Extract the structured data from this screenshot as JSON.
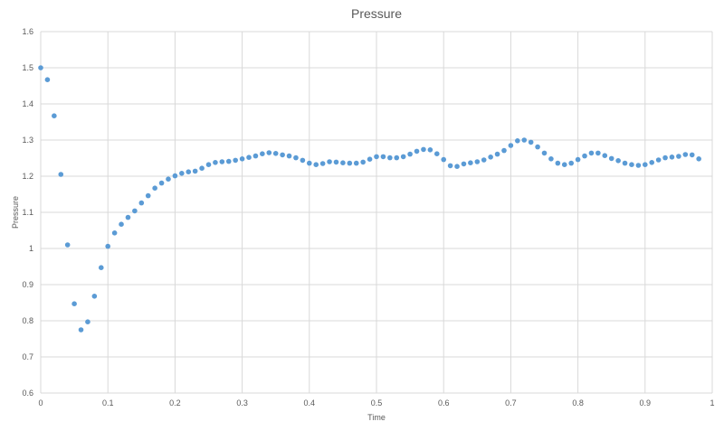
{
  "chart_data": {
    "type": "scatter",
    "title": "Pressure",
    "xlabel": "Time",
    "ylabel": "Pressure",
    "xlim": [
      0,
      1
    ],
    "ylim": [
      0.6,
      1.6
    ],
    "x_ticks": [
      "0",
      "0.1",
      "0.2",
      "0.3",
      "0.4",
      "0.5",
      "0.6",
      "0.7",
      "0.8",
      "0.9",
      "1"
    ],
    "y_ticks": [
      "0.6",
      "0.7",
      "0.8",
      "0.9",
      "1",
      "1.1",
      "1.2",
      "1.3",
      "1.4",
      "1.5",
      "1.6"
    ],
    "grid": true,
    "legend": "none",
    "marker_color": "#5b9bd5",
    "grid_color": "#d9d9d9",
    "series": [
      {
        "x": [
          0.0,
          0.01,
          0.02,
          0.03,
          0.04,
          0.05,
          0.06,
          0.07,
          0.08,
          0.09,
          0.1,
          0.11,
          0.12,
          0.13,
          0.14,
          0.15,
          0.16,
          0.17,
          0.18,
          0.19,
          0.2,
          0.21,
          0.22,
          0.23,
          0.24,
          0.25,
          0.26,
          0.27,
          0.28,
          0.29,
          0.3,
          0.31,
          0.32,
          0.33,
          0.34,
          0.35,
          0.36,
          0.37,
          0.38,
          0.39,
          0.4,
          0.41,
          0.42,
          0.43,
          0.44,
          0.45,
          0.46,
          0.47,
          0.48,
          0.49,
          0.5,
          0.51,
          0.52,
          0.53,
          0.54,
          0.55,
          0.56,
          0.57,
          0.58,
          0.59,
          0.6,
          0.61,
          0.62,
          0.63,
          0.64,
          0.65,
          0.66,
          0.67,
          0.68,
          0.69,
          0.7,
          0.71,
          0.72,
          0.73,
          0.74,
          0.75,
          0.76,
          0.77,
          0.78,
          0.79,
          0.8,
          0.81,
          0.82,
          0.83,
          0.84,
          0.85,
          0.86,
          0.87,
          0.88,
          0.89,
          0.9,
          0.91,
          0.92,
          0.93,
          0.94,
          0.95,
          0.96,
          0.97,
          0.98
        ],
        "y": [
          1.5,
          1.467,
          1.367,
          1.205,
          1.01,
          0.847,
          0.775,
          0.797,
          0.868,
          0.947,
          1.006,
          1.043,
          1.067,
          1.086,
          1.104,
          1.126,
          1.146,
          1.167,
          1.181,
          1.192,
          1.201,
          1.208,
          1.212,
          1.214,
          1.222,
          1.232,
          1.238,
          1.24,
          1.241,
          1.244,
          1.248,
          1.252,
          1.256,
          1.262,
          1.265,
          1.263,
          1.259,
          1.256,
          1.251,
          1.244,
          1.236,
          1.232,
          1.235,
          1.24,
          1.239,
          1.237,
          1.236,
          1.236,
          1.239,
          1.247,
          1.254,
          1.254,
          1.251,
          1.251,
          1.254,
          1.261,
          1.269,
          1.274,
          1.273,
          1.262,
          1.246,
          1.229,
          1.227,
          1.234,
          1.237,
          1.24,
          1.245,
          1.253,
          1.261,
          1.271,
          1.285,
          1.298,
          1.3,
          1.294,
          1.281,
          1.264,
          1.248,
          1.236,
          1.232,
          1.236,
          1.246,
          1.256,
          1.264,
          1.264,
          1.257,
          1.249,
          1.243,
          1.236,
          1.232,
          1.23,
          1.232,
          1.238,
          1.245,
          1.251,
          1.253,
          1.255,
          1.26,
          1.259,
          1.248
        ]
      }
    ]
  }
}
